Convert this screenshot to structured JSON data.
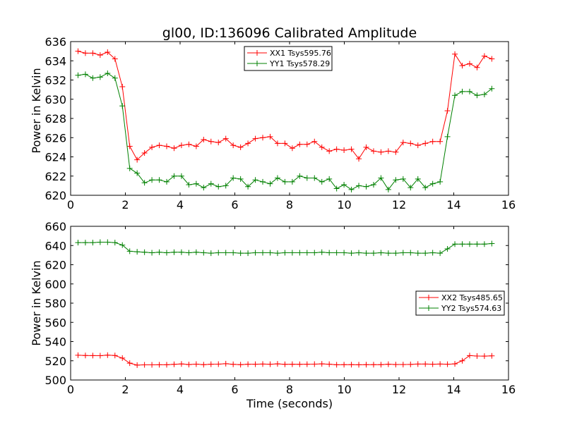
{
  "chart_data": [
    {
      "type": "line",
      "title": "gl00, ID:136096 Calibrated Amplitude",
      "xlabel": "",
      "ylabel": "Power in Kelvin",
      "xlim": [
        0,
        16
      ],
      "ylim": [
        620,
        636
      ],
      "xticks": [
        "0",
        "2",
        "4",
        "6",
        "8",
        "10",
        "12",
        "14",
        "16"
      ],
      "yticks": [
        "620",
        "622",
        "624",
        "626",
        "628",
        "630",
        "632",
        "634",
        "636"
      ],
      "legend_position": "upper-center",
      "grid": false,
      "x": [
        0.27,
        0.54,
        0.81,
        1.08,
        1.35,
        1.62,
        1.89,
        2.16,
        2.43,
        2.7,
        2.97,
        3.24,
        3.51,
        3.78,
        4.05,
        4.32,
        4.59,
        4.86,
        5.13,
        5.4,
        5.67,
        5.94,
        6.21,
        6.48,
        6.75,
        7.02,
        7.29,
        7.56,
        7.83,
        8.1,
        8.37,
        8.64,
        8.91,
        9.18,
        9.45,
        9.72,
        9.99,
        10.26,
        10.53,
        10.8,
        11.07,
        11.34,
        11.61,
        11.88,
        12.15,
        12.42,
        12.69,
        12.96,
        13.23,
        13.5,
        13.77,
        14.04,
        14.31,
        14.58,
        14.85,
        15.12,
        15.39
      ],
      "series": [
        {
          "name": "XX1 Tsys595.76",
          "color": "#ff0000",
          "values": [
            635.0,
            634.8,
            634.8,
            634.6,
            634.9,
            634.2,
            631.3,
            625.1,
            623.7,
            624.4,
            625.0,
            625.2,
            625.1,
            624.9,
            625.2,
            625.3,
            625.1,
            625.8,
            625.6,
            625.5,
            625.9,
            625.2,
            625.0,
            625.4,
            625.9,
            626.0,
            626.1,
            625.4,
            625.4,
            624.9,
            625.3,
            625.3,
            625.6,
            625.0,
            624.6,
            624.8,
            624.7,
            624.8,
            623.8,
            625.0,
            624.6,
            624.5,
            624.6,
            624.5,
            625.5,
            625.4,
            625.2,
            625.4,
            625.6,
            625.6,
            628.8,
            634.7,
            633.5,
            633.7,
            633.3,
            634.5,
            634.2
          ]
        },
        {
          "name": "YY1 Tsys578.29",
          "color": "#008000",
          "values": [
            632.5,
            632.6,
            632.2,
            632.3,
            632.7,
            632.2,
            629.3,
            622.8,
            622.3,
            621.3,
            621.6,
            621.6,
            621.4,
            622.0,
            622.0,
            621.1,
            621.2,
            620.8,
            621.2,
            620.9,
            621.0,
            621.8,
            621.7,
            620.9,
            621.6,
            621.4,
            621.2,
            621.8,
            621.4,
            621.4,
            622.0,
            621.8,
            621.8,
            621.4,
            621.7,
            620.7,
            621.1,
            620.6,
            621.0,
            620.9,
            621.1,
            621.8,
            620.6,
            621.6,
            621.7,
            620.8,
            621.7,
            620.8,
            621.2,
            621.4,
            626.1,
            630.4,
            630.8,
            630.8,
            630.4,
            630.5,
            631.1
          ]
        }
      ]
    },
    {
      "type": "line",
      "title": "",
      "xlabel": "Time (seconds)",
      "ylabel": "Power in Kelvin",
      "xlim": [
        0,
        16
      ],
      "ylim": [
        500,
        660
      ],
      "xticks": [
        "0",
        "2",
        "4",
        "6",
        "8",
        "10",
        "12",
        "14",
        "16"
      ],
      "yticks": [
        "500",
        "520",
        "540",
        "560",
        "580",
        "600",
        "620",
        "640",
        "660"
      ],
      "legend_position": "center-right",
      "grid": false,
      "x": [
        0.27,
        0.54,
        0.81,
        1.08,
        1.35,
        1.62,
        1.89,
        2.16,
        2.43,
        2.7,
        2.97,
        3.24,
        3.51,
        3.78,
        4.05,
        4.32,
        4.59,
        4.86,
        5.13,
        5.4,
        5.67,
        5.94,
        6.21,
        6.48,
        6.75,
        7.02,
        7.29,
        7.56,
        7.83,
        8.1,
        8.37,
        8.64,
        8.91,
        9.18,
        9.45,
        9.72,
        9.99,
        10.26,
        10.53,
        10.8,
        11.07,
        11.34,
        11.61,
        11.88,
        12.15,
        12.42,
        12.69,
        12.96,
        13.23,
        13.5,
        13.77,
        14.04,
        14.31,
        14.58,
        14.85,
        15.12,
        15.39
      ],
      "series": [
        {
          "name": "XX2 Tsys485.65",
          "color": "#ff0000",
          "values": [
            525.8,
            525.5,
            525.4,
            525.3,
            525.9,
            525.5,
            522.8,
            517.5,
            515.5,
            515.8,
            515.8,
            515.9,
            515.9,
            516.3,
            516.7,
            516.1,
            516.5,
            516.0,
            516.4,
            516.5,
            517.0,
            516.3,
            516.0,
            516.4,
            516.4,
            516.6,
            516.4,
            516.8,
            516.3,
            516.4,
            516.3,
            516.4,
            516.5,
            516.8,
            516.4,
            515.9,
            516.0,
            516.0,
            515.9,
            516.0,
            516.0,
            516.0,
            516.4,
            516.1,
            516.1,
            516.2,
            516.6,
            516.6,
            516.4,
            516.6,
            516.4,
            516.8,
            520.0,
            525.4,
            525.0,
            524.9,
            525.1
          ]
        },
        {
          "name": "YY2 Tsys574.63",
          "color": "#008000",
          "values": [
            643.0,
            643.0,
            643.0,
            643.5,
            643.5,
            643.0,
            640.5,
            634.0,
            633.5,
            633.0,
            632.5,
            633.0,
            632.5,
            633.0,
            633.0,
            632.5,
            633.0,
            632.5,
            632.0,
            632.5,
            632.5,
            632.5,
            632.0,
            632.0,
            632.5,
            632.5,
            632.5,
            632.0,
            632.5,
            632.5,
            632.5,
            632.5,
            632.5,
            633.0,
            632.5,
            632.5,
            632.5,
            632.0,
            632.5,
            632.0,
            632.0,
            632.5,
            632.0,
            632.0,
            632.5,
            632.5,
            632.0,
            632.0,
            632.5,
            632.0,
            636.5,
            641.5,
            641.5,
            641.5,
            641.5,
            641.5,
            642.0
          ]
        }
      ]
    }
  ]
}
